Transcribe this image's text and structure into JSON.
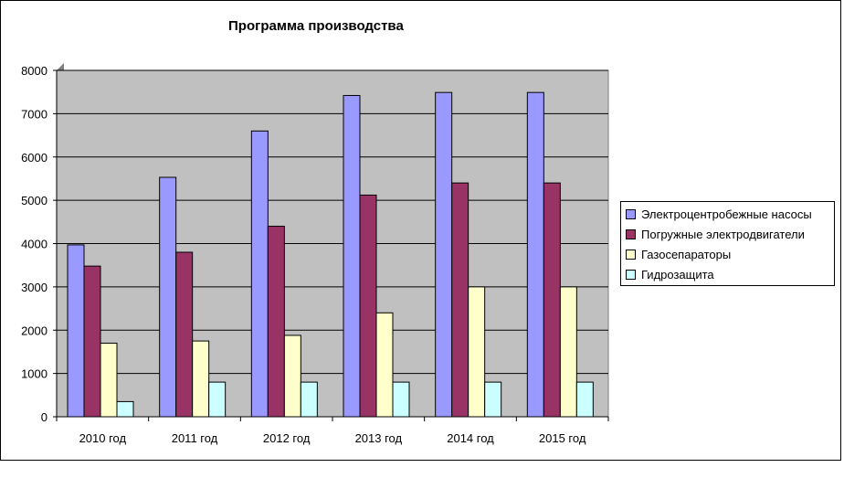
{
  "chart_data": {
    "type": "bar",
    "title": "Программа производства",
    "categories": [
      "2010 год",
      "2011 год",
      "2012 год",
      "2013 год",
      "2014 год",
      "2015 год"
    ],
    "series": [
      {
        "name": "Электроцентробежные насосы",
        "values": [
          3970,
          5530,
          6600,
          7420,
          7490,
          7490
        ],
        "color": "#9999ff"
      },
      {
        "name": "Погружные электродвигатели",
        "values": [
          3480,
          3800,
          4400,
          5120,
          5400,
          5400
        ],
        "color": "#993366"
      },
      {
        "name": "Газосепараторы",
        "values": [
          1700,
          1750,
          1880,
          2400,
          3000,
          3000
        ],
        "color": "#ffffcc"
      },
      {
        "name": "Гидрозащита",
        "values": [
          350,
          800,
          800,
          800,
          800,
          800
        ],
        "color": "#ccffff"
      }
    ],
    "ylim": [
      0,
      8000
    ],
    "yticks": [
      0,
      1000,
      2000,
      3000,
      4000,
      5000,
      6000,
      7000,
      8000
    ],
    "grid": true,
    "plot_background": "#c0c0c0",
    "legend_position": "right"
  }
}
